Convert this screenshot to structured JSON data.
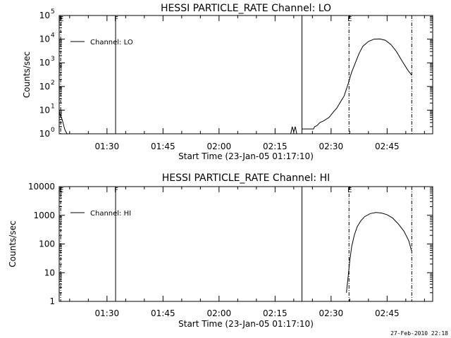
{
  "footer": {
    "timestamp": "27-Feb-2010 22:18"
  },
  "chart_data": [
    {
      "type": "line",
      "title": "HESSI PARTICLE_RATE Channel: LO",
      "xlabel": "Start Time (23-Jan-05 01:17:10)",
      "ylabel": "Counts/sec",
      "x_ticks": [
        "01:30",
        "01:45",
        "02:00",
        "02:15",
        "02:30",
        "02:45"
      ],
      "x_tick_minutes": [
        90,
        105,
        120,
        135,
        150,
        165
      ],
      "xlim_minutes": [
        77.2,
        177.2
      ],
      "y_scale": "log",
      "ylim": [
        1,
        100000
      ],
      "y_ticks": [
        {
          "v": 1,
          "base": "10",
          "exp": "0"
        },
        {
          "v": 10,
          "base": "10",
          "exp": "1"
        },
        {
          "v": 100,
          "base": "10",
          "exp": "2"
        },
        {
          "v": 1000,
          "base": "10",
          "exp": "3"
        },
        {
          "v": 10000,
          "base": "10",
          "exp": "4"
        },
        {
          "v": 100000,
          "base": "10",
          "exp": "5"
        }
      ],
      "legend": {
        "label": "Channel: LO",
        "position": "top-left"
      },
      "markers": [
        {
          "minute": 77.6,
          "style": "dash-dot",
          "label": "E"
        },
        {
          "minute": 92.3,
          "style": "solid",
          "label": "F"
        },
        {
          "minute": 142.2,
          "style": "solid",
          "label": ""
        },
        {
          "minute": 154.8,
          "style": "dash-dot",
          "label": "E"
        },
        {
          "minute": 171.6,
          "style": "dash-dot",
          "label": ""
        }
      ],
      "series": [
        {
          "name": "Channel: LO",
          "segments": [
            [
              [
                77.2,
                8
              ],
              [
                78.0,
                4
              ],
              [
                78.7,
                1.5
              ],
              [
                79.3,
                1
              ]
            ],
            [
              [
                139.2,
                1
              ],
              [
                139.6,
                2
              ],
              [
                140.0,
                1.2
              ],
              [
                140.4,
                2
              ],
              [
                140.8,
                1
              ]
            ],
            [
              [
                142.3,
                1.6
              ],
              [
                143.0,
                1.6
              ],
              [
                144.5,
                1.6
              ],
              [
                145.3,
                1.6
              ],
              [
                145.6,
                2
              ],
              [
                146.2,
                2.2
              ],
              [
                147.0,
                3
              ],
              [
                148.0,
                3.5
              ],
              [
                149.5,
                5
              ],
              [
                150.5,
                8
              ],
              [
                151.5,
                12
              ],
              [
                152.5,
                22
              ],
              [
                153.5,
                40
              ],
              [
                154.5,
                120
              ],
              [
                155.5,
                400
              ],
              [
                156.5,
                1000
              ],
              [
                157.5,
                2500
              ],
              [
                158.5,
                5000
              ],
              [
                160.0,
                8000
              ],
              [
                161.5,
                10000
              ],
              [
                163.0,
                10200
              ],
              [
                164.5,
                9000
              ],
              [
                166.0,
                6000
              ],
              [
                167.5,
                3000
              ],
              [
                169.0,
                1200
              ],
              [
                170.5,
                500
              ],
              [
                171.6,
                300
              ]
            ]
          ]
        }
      ]
    },
    {
      "type": "line",
      "title": "HESSI PARTICLE_RATE Channel: HI",
      "xlabel": "Start Time (23-Jan-05 01:17:10)",
      "ylabel": "Counts/sec",
      "x_ticks": [
        "01:30",
        "01:45",
        "02:00",
        "02:15",
        "02:30",
        "02:45"
      ],
      "x_tick_minutes": [
        90,
        105,
        120,
        135,
        150,
        165
      ],
      "xlim_minutes": [
        77.2,
        177.2
      ],
      "y_scale": "log",
      "ylim": [
        1,
        10000
      ],
      "y_ticks": [
        {
          "v": 1,
          "base": "1",
          "exp": ""
        },
        {
          "v": 10,
          "base": "10",
          "exp": ""
        },
        {
          "v": 100,
          "base": "100",
          "exp": ""
        },
        {
          "v": 1000,
          "base": "1000",
          "exp": ""
        },
        {
          "v": 10000,
          "base": "10000",
          "exp": ""
        }
      ],
      "legend": {
        "label": "Channel: HI",
        "position": "top-left"
      },
      "markers": [
        {
          "minute": 77.6,
          "style": "dash-dot",
          "label": "E"
        },
        {
          "minute": 92.3,
          "style": "solid",
          "label": "F"
        },
        {
          "minute": 142.2,
          "style": "solid",
          "label": ""
        },
        {
          "minute": 154.8,
          "style": "dash-dot",
          "label": "E"
        },
        {
          "minute": 171.6,
          "style": "dash-dot",
          "label": ""
        }
      ],
      "series": [
        {
          "name": "Channel: HI",
          "segments": [
            [
              [
                154.1,
                2
              ],
              [
                154.5,
                6
              ],
              [
                155.0,
                25
              ],
              [
                155.5,
                80
              ],
              [
                156.2,
                200
              ],
              [
                157.0,
                400
              ],
              [
                158.0,
                650
              ],
              [
                159.0,
                900
              ],
              [
                160.5,
                1150
              ],
              [
                162.0,
                1250
              ],
              [
                163.5,
                1200
              ],
              [
                165.0,
                1050
              ],
              [
                166.5,
                800
              ],
              [
                168.0,
                500
              ],
              [
                169.5,
                280
              ],
              [
                170.8,
                130
              ],
              [
                171.5,
                60
              ]
            ]
          ]
        }
      ]
    }
  ]
}
